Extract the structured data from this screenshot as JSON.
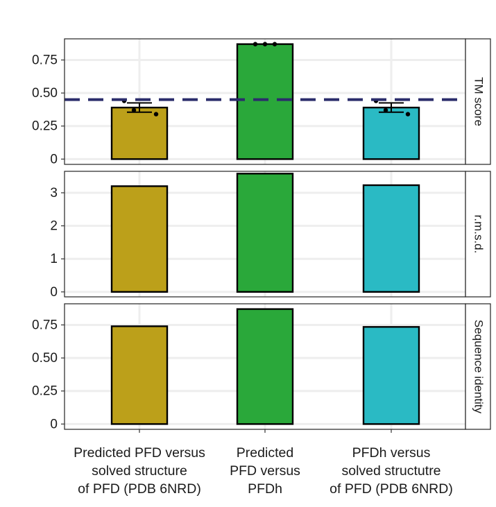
{
  "chart_data": {
    "type": "bar",
    "categories": [
      [
        "Predicted PFD versus",
        "solved structure",
        "of PFD (PDB 6NRD)"
      ],
      [
        "Predicted",
        "PFD versus",
        "PFDh"
      ],
      [
        "PFDh versus",
        "solved structutre",
        "of PFD (PDB 6NRD)"
      ]
    ],
    "colors": [
      "#bca01a",
      "#2aa83a",
      "#2abac4"
    ],
    "facets": [
      {
        "label": "TM score",
        "ylim": [
          -0.04,
          0.91
        ],
        "yticks": [
          0,
          0.25,
          0.5,
          0.75
        ],
        "ytick_labels": [
          "0",
          "0.25",
          "0.50",
          "0.75"
        ],
        "values": [
          0.39,
          0.87,
          0.39
        ],
        "errors": [
          0.035,
          0.0,
          0.035
        ],
        "points": [
          [
            0.44,
            0.37,
            0.34
          ],
          [
            0.87,
            0.87,
            0.87
          ],
          [
            0.44,
            0.37,
            0.34
          ]
        ],
        "reference_line": 0.45
      },
      {
        "label": "r.m.s.d.",
        "ylim": [
          -0.15,
          3.65
        ],
        "yticks": [
          0,
          1,
          2,
          3
        ],
        "ytick_labels": [
          "0",
          "1",
          "2",
          "3"
        ],
        "values": [
          3.2,
          3.58,
          3.23
        ],
        "errors": [
          0,
          0,
          0
        ],
        "points": [],
        "reference_line": null
      },
      {
        "label": "Sequence identity",
        "ylim": [
          -0.04,
          0.91
        ],
        "yticks": [
          0,
          0.25,
          0.5,
          0.75
        ],
        "ytick_labels": [
          "0",
          "0.25",
          "0.50",
          "0.75"
        ],
        "values": [
          0.74,
          0.87,
          0.735
        ],
        "errors": [
          0,
          0,
          0
        ],
        "points": [],
        "reference_line": null
      }
    ],
    "grid": true
  }
}
